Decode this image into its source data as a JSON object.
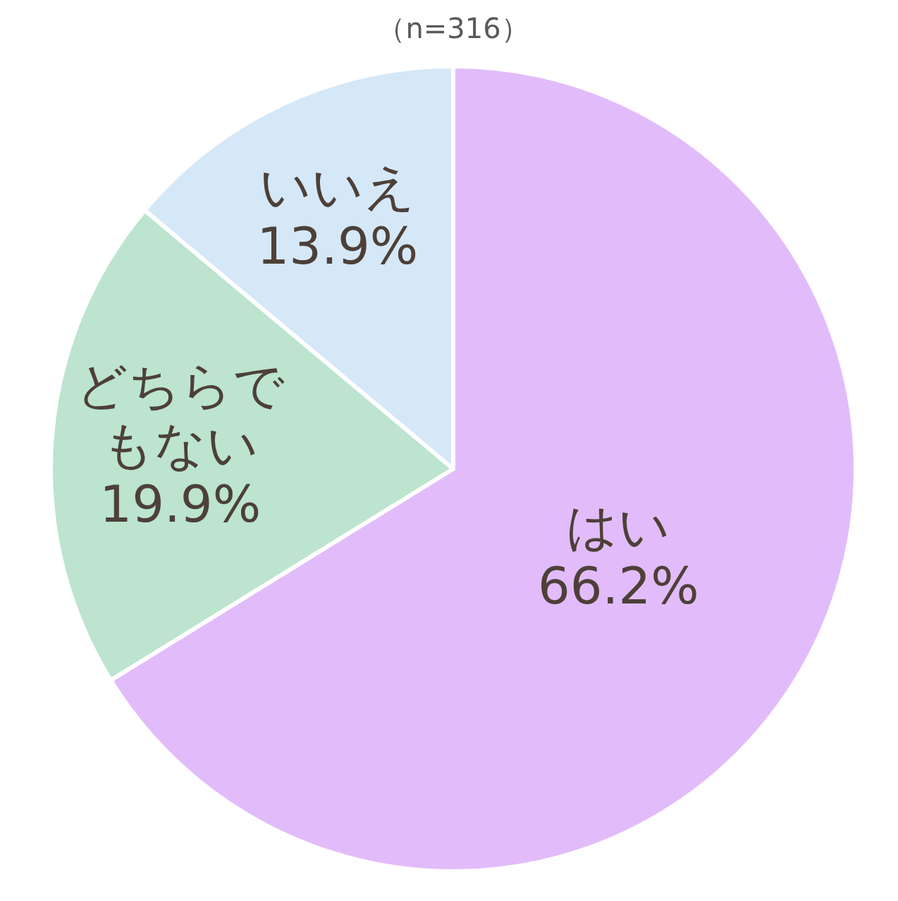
{
  "chart_data": {
    "type": "pie",
    "title": "（n=316）",
    "categories": [
      "はい",
      "どちらでもない",
      "いいえ"
    ],
    "values": [
      66.2,
      19.9,
      13.9
    ],
    "colors": [
      "#e2bcfa",
      "#bce4cf",
      "#d5e8f8"
    ],
    "value_labels": [
      "66.2%",
      "19.9%",
      "13.9%"
    ],
    "legend": false
  }
}
